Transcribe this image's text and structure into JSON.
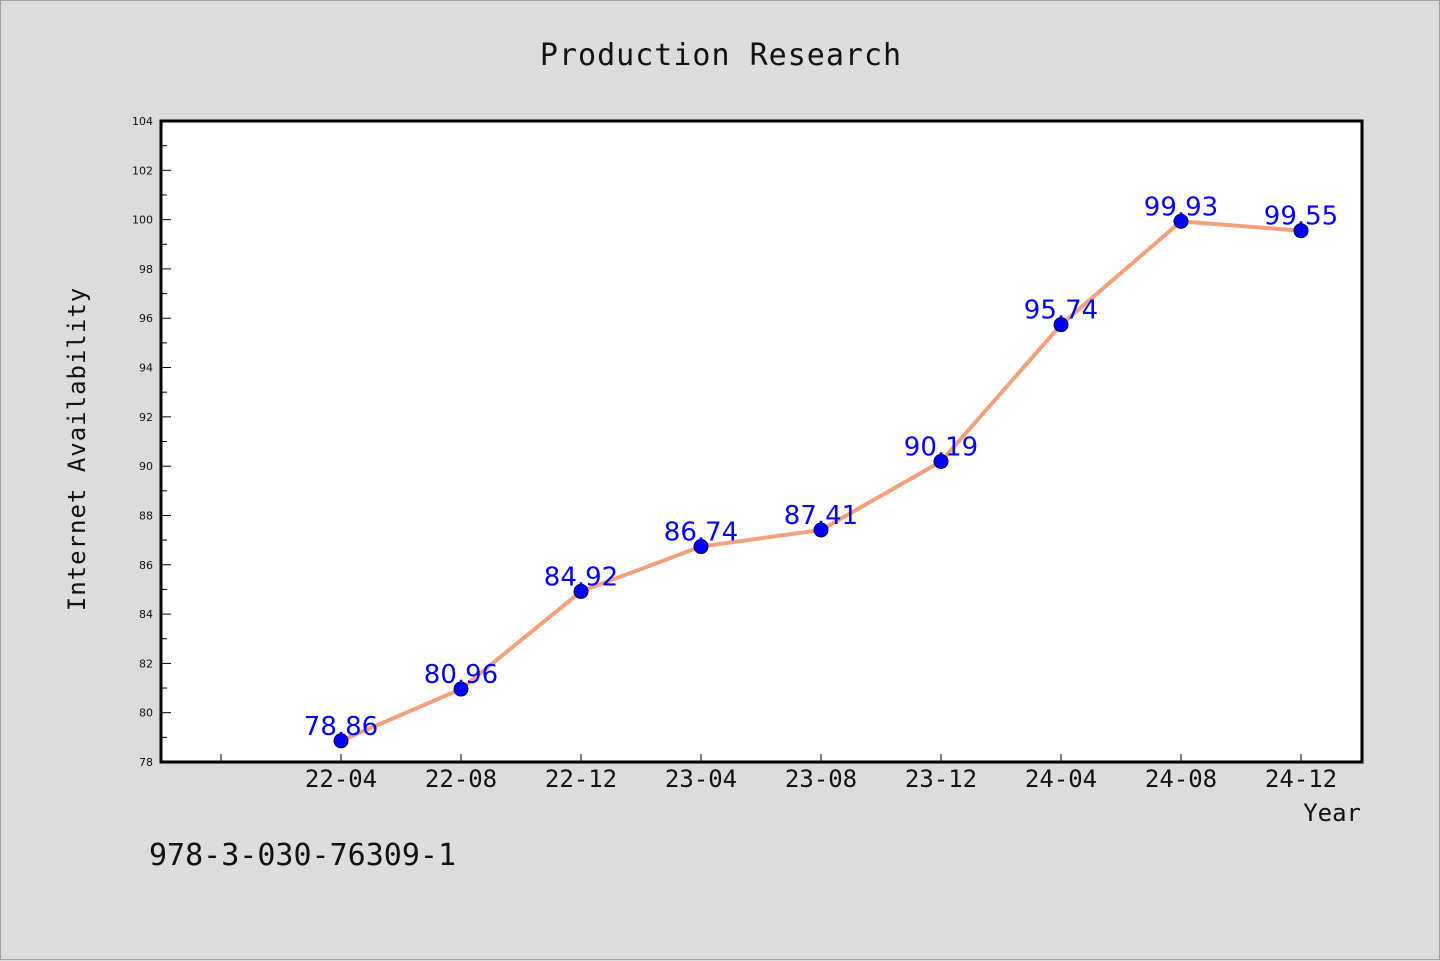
{
  "chart_data": {
    "type": "line",
    "title": "Production Research",
    "xlabel": "Year",
    "ylabel": "Internet Availability",
    "categories": [
      "22-04",
      "22-08",
      "22-12",
      "23-04",
      "23-08",
      "23-12",
      "24-04",
      "24-08",
      "24-12"
    ],
    "series": [
      {
        "values": [
          78.86,
          80.96,
          84.92,
          86.74,
          87.41,
          90.19,
          95.74,
          99.93,
          99.55
        ]
      }
    ],
    "data_labels": [
      "78.86",
      "80.96",
      "84.92",
      "86.74",
      "87.41",
      "90.19",
      "95.74",
      "99.93",
      "99.55"
    ],
    "ylim": [
      78,
      104
    ],
    "yticks": [
      78,
      80,
      82,
      84,
      86,
      88,
      90,
      92,
      94,
      96,
      98,
      100,
      102,
      104
    ],
    "grid": false,
    "line_color": "#f4a07c",
    "marker_color": "#0000ff",
    "label_color": "#0000ff"
  },
  "footnote": "978-3-030-76309-1"
}
